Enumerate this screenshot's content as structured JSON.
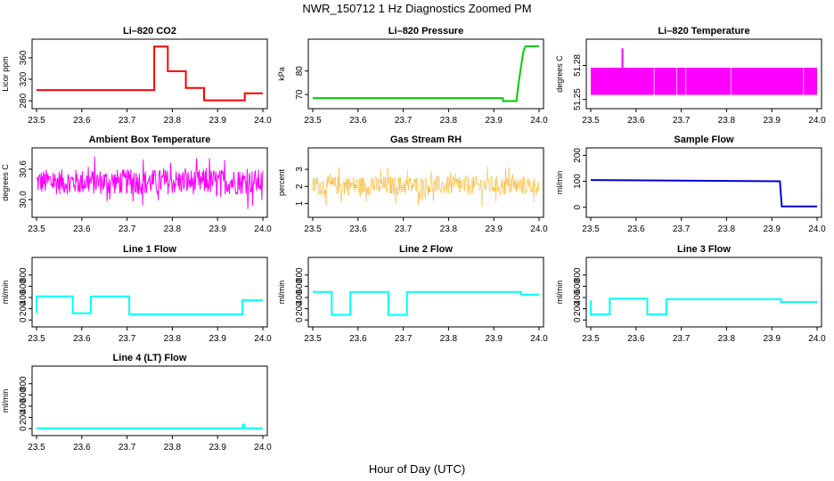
{
  "figure": {
    "title": "NWR_150712  1 Hz Diagnostics Zoomed PM",
    "xlabel": "Hour of Day (UTC)"
  },
  "chart_data": [
    {
      "type": "line",
      "title": "Li–820 CO2",
      "ylabel": "Licor ppm",
      "color": "#ff0000",
      "xlim": [
        23.5,
        24.0
      ],
      "ylim": [
        272,
        388
      ],
      "xticks": [
        "23.5",
        "23.6",
        "23.7",
        "23.8",
        "23.9",
        "24.0"
      ],
      "yticks": [
        "280",
        "320",
        "360"
      ],
      "ytick_values": [
        280,
        320,
        360
      ],
      "series": [
        {
          "x": [
            23.5,
            23.76,
            23.76,
            23.79,
            23.79,
            23.83,
            23.83,
            23.87,
            23.87,
            23.96,
            23.96,
            24.0
          ],
          "y": [
            300,
            300,
            381,
            381,
            335,
            335,
            304,
            304,
            281,
            281,
            294,
            294
          ]
        }
      ]
    },
    {
      "type": "line",
      "title": "Li–820 Pressure",
      "ylabel": "kPa",
      "color": "#00cc00",
      "xlim": [
        23.5,
        24.0
      ],
      "ylim": [
        65.5,
        92
      ],
      "xticks": [
        "23.5",
        "23.6",
        "23.7",
        "23.8",
        "23.9",
        "24.0"
      ],
      "yticks": [
        "70",
        "80"
      ],
      "ytick_values": [
        70,
        80
      ],
      "series": [
        {
          "x": [
            23.5,
            23.92,
            23.92,
            23.95,
            23.955,
            23.965,
            23.97,
            24.0
          ],
          "y": [
            68.5,
            68.5,
            67.2,
            67.2,
            75,
            88,
            90.5,
            90.5
          ]
        }
      ]
    },
    {
      "type": "area",
      "title": "Li–820 Temperature",
      "ylabel": "degrees C",
      "color": "#ff00ff",
      "xlim": [
        23.5,
        24.0
      ],
      "ylim": [
        51.245,
        51.3
      ],
      "xticks": [
        "23.5",
        "23.6",
        "23.7",
        "23.8",
        "23.9",
        "24.0"
      ],
      "yticks": [
        "51.25",
        "51.28"
      ],
      "ytick_values": [
        51.25,
        51.28
      ],
      "band": {
        "x": [
          23.5,
          24.0
        ],
        "low": 51.254,
        "high": 51.278,
        "spike_x": 23.57,
        "spike_y": 51.295
      }
    },
    {
      "type": "line",
      "title": "Ambient Box Temperature",
      "ylabel": "degrees C",
      "color": "#ff00ff",
      "xlim": [
        23.5,
        24.0
      ],
      "ylim": [
        29.72,
        30.95
      ],
      "xticks": [
        "23.5",
        "23.6",
        "23.7",
        "23.8",
        "23.9",
        "24.0"
      ],
      "yticks": [
        "30.0",
        "30.6"
      ],
      "ytick_values": [
        30.0,
        30.6
      ],
      "noise": {
        "mean": 30.35,
        "amplitude": 0.5,
        "min": 29.8,
        "max": 30.85
      }
    },
    {
      "type": "scatter",
      "title": "Gas Stream RH",
      "ylabel": "percent",
      "color": "#ffa500",
      "xlim": [
        23.5,
        24.0
      ],
      "ylim": [
        0.4,
        4.05
      ],
      "xticks": [
        "23.5",
        "23.6",
        "23.7",
        "23.8",
        "23.9",
        "24.0"
      ],
      "yticks": [
        "1",
        "2",
        "3"
      ],
      "ytick_values": [
        1,
        2,
        3
      ],
      "noise": {
        "mean": 2.05,
        "amplitude": 1.1,
        "min": 0.5,
        "max": 3.7
      }
    },
    {
      "type": "line",
      "title": "Sample Flow",
      "ylabel": "ml/min",
      "color": "#0000cc",
      "xlim": [
        23.5,
        24.0
      ],
      "ylim": [
        -25,
        215
      ],
      "xticks": [
        "23.5",
        "23.6",
        "23.7",
        "23.8",
        "23.9",
        "24.0"
      ],
      "yticks": [
        "0",
        "100",
        "200"
      ],
      "ytick_values": [
        0,
        100,
        200
      ],
      "series": [
        {
          "x": [
            23.5,
            23.918,
            23.922,
            24.0
          ],
          "y": [
            105,
            100,
            3,
            3
          ]
        }
      ]
    },
    {
      "type": "line",
      "title": "Line 1 Flow",
      "ylabel": "ml/min",
      "color": "#00ffff",
      "xlim": [
        23.5,
        24.0
      ],
      "ylim": [
        -60,
        1050
      ],
      "xticks": [
        "23.5",
        "23.6",
        "23.7",
        "23.8",
        "23.9",
        "24.0"
      ],
      "yticks": [
        "0",
        "200",
        "400",
        "600",
        "800"
      ],
      "ytick_values": [
        0,
        200,
        400,
        600,
        800
      ],
      "series": [
        {
          "x": [
            23.5,
            23.5,
            23.58,
            23.58,
            23.62,
            23.62,
            23.705,
            23.705,
            23.955,
            23.955,
            24.0
          ],
          "y": [
            120,
            420,
            420,
            120,
            120,
            420,
            420,
            100,
            100,
            350,
            350
          ]
        }
      ]
    },
    {
      "type": "line",
      "title": "Line 2 Flow",
      "ylabel": "ml/min",
      "color": "#00ffff",
      "xlim": [
        23.5,
        24.0
      ],
      "ylim": [
        -60,
        1050
      ],
      "xticks": [
        "23.5",
        "23.6",
        "23.7",
        "23.8",
        "23.9",
        "24.0"
      ],
      "yticks": [
        "0",
        "200",
        "400",
        "600",
        "800"
      ],
      "ytick_values": [
        0,
        200,
        400,
        600,
        800
      ],
      "series": [
        {
          "x": [
            23.5,
            23.542,
            23.542,
            23.583,
            23.583,
            23.667,
            23.667,
            23.708,
            23.708,
            23.96,
            23.96,
            24.0
          ],
          "y": [
            500,
            500,
            90,
            90,
            500,
            500,
            90,
            90,
            500,
            500,
            450,
            450
          ]
        }
      ]
    },
    {
      "type": "line",
      "title": "Line 3 Flow",
      "ylabel": "ml/min",
      "color": "#00ffff",
      "xlim": [
        23.5,
        24.0
      ],
      "ylim": [
        -60,
        1050
      ],
      "xticks": [
        "23.5",
        "23.6",
        "23.7",
        "23.8",
        "23.9",
        "24.0"
      ],
      "yticks": [
        "0",
        "200",
        "400",
        "600",
        "800"
      ],
      "ytick_values": [
        0,
        200,
        400,
        600,
        800
      ],
      "series": [
        {
          "x": [
            23.5,
            23.5,
            23.542,
            23.542,
            23.625,
            23.625,
            23.667,
            23.667,
            23.92,
            23.92,
            24.0
          ],
          "y": [
            350,
            100,
            100,
            380,
            380,
            100,
            100,
            370,
            370,
            320,
            320
          ]
        }
      ]
    },
    {
      "type": "line",
      "title": "Line 4 (LT) Flow",
      "ylabel": "ml/min",
      "color": "#00ffff",
      "xlim": [
        23.5,
        24.0
      ],
      "ylim": [
        -60,
        1050
      ],
      "xticks": [
        "23.5",
        "23.6",
        "23.7",
        "23.8",
        "23.9",
        "24.0"
      ],
      "yticks": [
        "0",
        "200",
        "400",
        "600",
        "800"
      ],
      "ytick_values": [
        0,
        200,
        400,
        600,
        800
      ],
      "series": [
        {
          "x": [
            23.5,
            23.955,
            23.956,
            23.958,
            23.96,
            24.0
          ],
          "y": [
            5,
            5,
            70,
            70,
            5,
            5
          ]
        }
      ]
    }
  ]
}
